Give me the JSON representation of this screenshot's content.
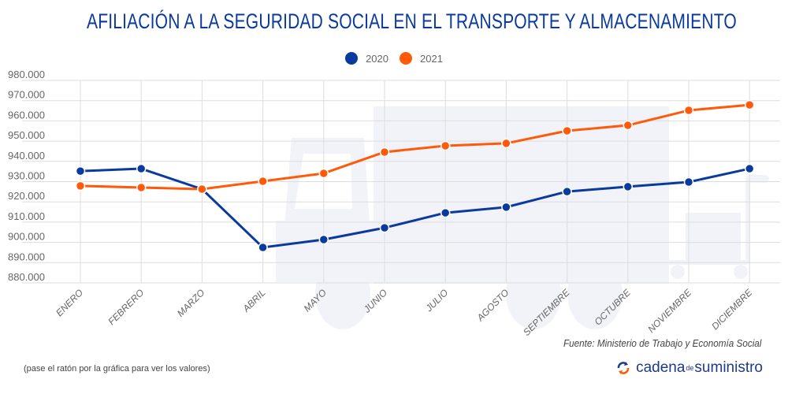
{
  "title": "AFILIACIÓN A LA SEGURIDAD SOCIAL EN EL TRANSPORTE Y ALMACENAMIENTO",
  "legend": [
    {
      "label": "2020",
      "color": "#0a3a9e"
    },
    {
      "label": "2021",
      "color": "#ff5a0a"
    }
  ],
  "source": "Fuente: Ministerio de Trabajo y Economía Social",
  "hint": "(pase el ratón por la gráfica para ver los valores)",
  "logo": {
    "part1": "cadena",
    "part2": "de",
    "part3": "suministro"
  },
  "chart_data": {
    "type": "line",
    "title": "AFILIACIÓN A LA SEGURIDAD SOCIAL EN EL TRANSPORTE Y ALMACENAMIENTO",
    "xlabel": "",
    "ylabel": "",
    "categories": [
      "ENERO",
      "FEBRERO",
      "MARZO",
      "ABRIL",
      "MAYO",
      "JUNIO",
      "JULIO",
      "AGOSTO",
      "SEPTIEMBRE",
      "OCTUBRE",
      "NOVIEMBRE",
      "DICIEMBRE"
    ],
    "series": [
      {
        "name": "2020",
        "color": "#0a3a9e",
        "values": [
          935200,
          936400,
          926300,
          897500,
          901400,
          907200,
          914600,
          917400,
          925100,
          927500,
          929800,
          936400
        ]
      },
      {
        "name": "2021",
        "color": "#ff5a0a",
        "values": [
          927900,
          927100,
          926300,
          930200,
          934100,
          944600,
          947700,
          948900,
          955100,
          957800,
          965200,
          967900
        ]
      }
    ],
    "ylim": [
      880000,
      980000
    ],
    "yticks": [
      "980.000",
      "970.000",
      "960.000",
      "950.000",
      "940.000",
      "930.000",
      "920.000",
      "910.000",
      "900.000",
      "890.000",
      "880.000"
    ],
    "ytick_values": [
      980000,
      970000,
      960000,
      950000,
      940000,
      930000,
      920000,
      910000,
      900000,
      890000,
      880000
    ],
    "grid": true,
    "legend_position": "top-center"
  }
}
